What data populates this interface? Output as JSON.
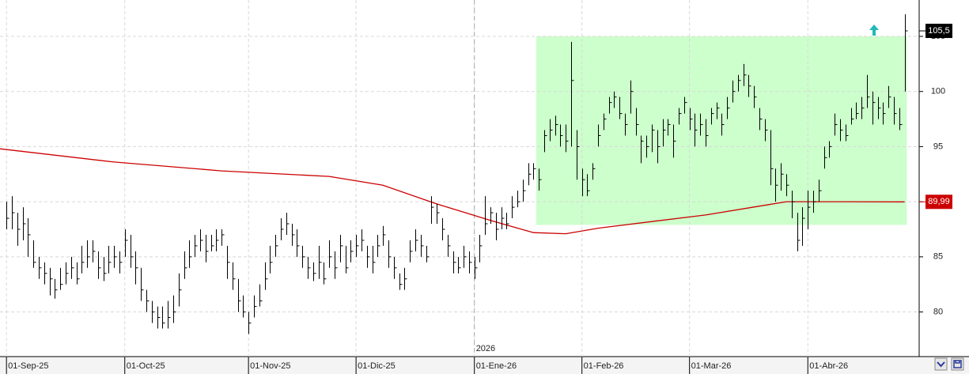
{
  "chart_data": {
    "type": "hlc",
    "color": "#000000",
    "xlim": [
      -1.2,
      169.7
    ],
    "ylim": [
      75.95,
      108.3
    ],
    "xticks": [
      {
        "value": 0,
        "label": "01-Sep-25"
      },
      {
        "value": 22,
        "label": "01-Oct-25"
      },
      {
        "value": 45,
        "label": "01-Nov-25"
      },
      {
        "value": 65,
        "label": "01-Dic-25"
      },
      {
        "value": 87,
        "label": "01-Ene-26"
      },
      {
        "value": 107,
        "label": "01-Feb-26"
      },
      {
        "value": 127,
        "label": "01-Mar-26"
      },
      {
        "value": 149,
        "label": "01-Abr-26"
      }
    ],
    "year_marker": {
      "value": 87,
      "label": "2026"
    },
    "yticks": [
      80,
      85,
      90,
      95,
      100,
      105
    ],
    "grid": true,
    "high": [
      90,
      90.5,
      89,
      89.5,
      88.5,
      86.5,
      85,
      84.5,
      84,
      83,
      84,
      84.5,
      85,
      84.5,
      86,
      86.5,
      86.5,
      85.5,
      85,
      86,
      86,
      85.5,
      87.5,
      87,
      85.5,
      84,
      82,
      81,
      80.5,
      80.5,
      81,
      81.5,
      83.5,
      85.5,
      86.5,
      87,
      87.5,
      87,
      87,
      87.5,
      87.5,
      86,
      84.5,
      83,
      81.5,
      80,
      81.5,
      82.5,
      84.5,
      86,
      87,
      88.5,
      89,
      88,
      87.5,
      86,
      85,
      84.5,
      86,
      84.5,
      86.5,
      85.5,
      87,
      86,
      86.5,
      87,
      87.5,
      86,
      86,
      87,
      87.8,
      86.5,
      85,
      83.5,
      84,
      86.5,
      87.5,
      87,
      86,
      90.5,
      89.8,
      88.5,
      87,
      85.5,
      85,
      86,
      85.5,
      85,
      87,
      90.5,
      89.5,
      89,
      89.5,
      89,
      90.5,
      91,
      92,
      93.5,
      93.5,
      93,
      96.5,
      97.5,
      97.8,
      97,
      97,
      104.5,
      96.5,
      93,
      92.5,
      93.5,
      97,
      98,
      99.5,
      100,
      99.5,
      98,
      101,
      98.5,
      96,
      96,
      97,
      96.5,
      97.5,
      97.5,
      97,
      98.5,
      99.5,
      98.5,
      98,
      98,
      97.5,
      98.5,
      99,
      98,
      99.5,
      101,
      101.5,
      102.5,
      101.5,
      100.5,
      98.5,
      97.5,
      96.5,
      93,
      93.5,
      92.5,
      91,
      89,
      89.5,
      91,
      91,
      92,
      95,
      95.5,
      98,
      97.5,
      97,
      98.5,
      99,
      99.5,
      101.5,
      100,
      99.5,
      99,
      100.5,
      99.5,
      98.5,
      107
    ],
    "low": [
      87.5,
      87.5,
      86,
      86.5,
      85,
      84,
      83,
      82.5,
      81.5,
      81.2,
      82,
      82.5,
      83,
      82.5,
      83.5,
      84,
      84.5,
      83,
      82.8,
      83.5,
      84,
      83.5,
      85,
      84,
      82.5,
      81,
      80,
      79,
      78.5,
      78.5,
      78.5,
      79,
      80.5,
      83,
      84,
      85,
      85.5,
      84.5,
      85.5,
      85.5,
      86,
      83,
      82,
      80,
      79.5,
      78,
      79.5,
      80.5,
      82,
      83.5,
      85,
      86.5,
      87,
      86,
      85,
      84,
      83,
      82.8,
      83,
      82.5,
      84,
      83,
      84.5,
      83.5,
      84.5,
      85,
      85.5,
      84,
      83.5,
      85,
      86,
      84,
      83,
      82,
      82,
      84.5,
      85.5,
      85,
      84.5,
      88,
      88,
      86.5,
      85,
      83.5,
      83.5,
      84,
      83.5,
      83,
      84.5,
      87,
      88,
      86.5,
      87.5,
      87.5,
      88.5,
      89.5,
      90,
      91.5,
      92,
      91,
      94.5,
      95.5,
      96,
      95,
      94.5,
      95,
      92,
      90.5,
      90.5,
      92,
      95,
      96.5,
      98,
      98.5,
      97.5,
      96,
      98,
      96,
      93.5,
      94,
      94.5,
      93.5,
      95,
      96,
      94,
      97,
      98,
      96.5,
      95,
      96,
      95,
      97,
      97.5,
      96,
      97.5,
      99,
      100,
      100.5,
      99.5,
      98.5,
      96.5,
      95.5,
      91.5,
      90,
      91,
      90.5,
      88.5,
      85.5,
      86,
      87.5,
      89,
      90,
      93,
      94,
      96,
      95.5,
      95.5,
      97,
      97.5,
      97.5,
      98.5,
      97,
      97.5,
      97,
      98.5,
      97,
      96.5,
      100
    ],
    "close": [
      88.5,
      89,
      87.5,
      88,
      87,
      84.5,
      84,
      83.5,
      83,
      82,
      82.5,
      83.5,
      84,
      83,
      84.5,
      85,
      85.5,
      84,
      83.5,
      84.5,
      85,
      84.5,
      86.5,
      85,
      84,
      82,
      81,
      80,
      79.5,
      79,
      79.5,
      80,
      82,
      84,
      85,
      86,
      86.5,
      85.5,
      86,
      86.5,
      87,
      84.5,
      83,
      81,
      80,
      79,
      80.5,
      81,
      83,
      84.5,
      86,
      87.5,
      88,
      87,
      86,
      85,
      84,
      83.5,
      84.5,
      83,
      85,
      84,
      86,
      84,
      85.5,
      86,
      86.5,
      85,
      84.5,
      86,
      87,
      85,
      84,
      82.5,
      83,
      85.5,
      86.5,
      86,
      85,
      89.5,
      89,
      87.5,
      86,
      84.5,
      84,
      85,
      84.5,
      84,
      86,
      88,
      89,
      87.5,
      88.5,
      88,
      89.5,
      90,
      91,
      92.5,
      93,
      92,
      96,
      96.5,
      97,
      96,
      95.5,
      101,
      95,
      92,
      91,
      93,
      96,
      97.5,
      99,
      99.5,
      98,
      97,
      100,
      97,
      95.5,
      95,
      96.5,
      95,
      96.5,
      97,
      95.5,
      98,
      99,
      97.5,
      96.5,
      97,
      96,
      98,
      98.5,
      97,
      98.5,
      100,
      101,
      101.5,
      100.5,
      99.5,
      97.5,
      96.5,
      93,
      91.5,
      92.5,
      91.5,
      90,
      86.5,
      88.5,
      89.5,
      90,
      91,
      94,
      95,
      97,
      96.5,
      96,
      97.5,
      98,
      98.5,
      99.5,
      99,
      98.5,
      98,
      99.5,
      98,
      97,
      105.5
    ],
    "moving_average": {
      "color": "#cc0000",
      "x": [
        -1.2,
        20,
        40,
        60,
        70,
        80,
        90,
        98,
        104,
        110,
        120,
        130,
        140,
        145,
        155,
        167
      ],
      "values": [
        94.8,
        93.6,
        92.8,
        92.3,
        91.5,
        89.8,
        88.3,
        87.2,
        87.1,
        87.6,
        88.2,
        88.8,
        89.6,
        90.0,
        90.0,
        89.99
      ]
    },
    "zone": {
      "color": "#ccffcc",
      "x": [
        98.5,
        167.4
      ],
      "y": [
        87.9,
        105
      ]
    },
    "price_labels": [
      {
        "value": 105.5,
        "label": "105,5",
        "color": "#000000"
      },
      {
        "value": 89.99,
        "label": "89,99",
        "color": "#cc0000"
      }
    ]
  }
}
